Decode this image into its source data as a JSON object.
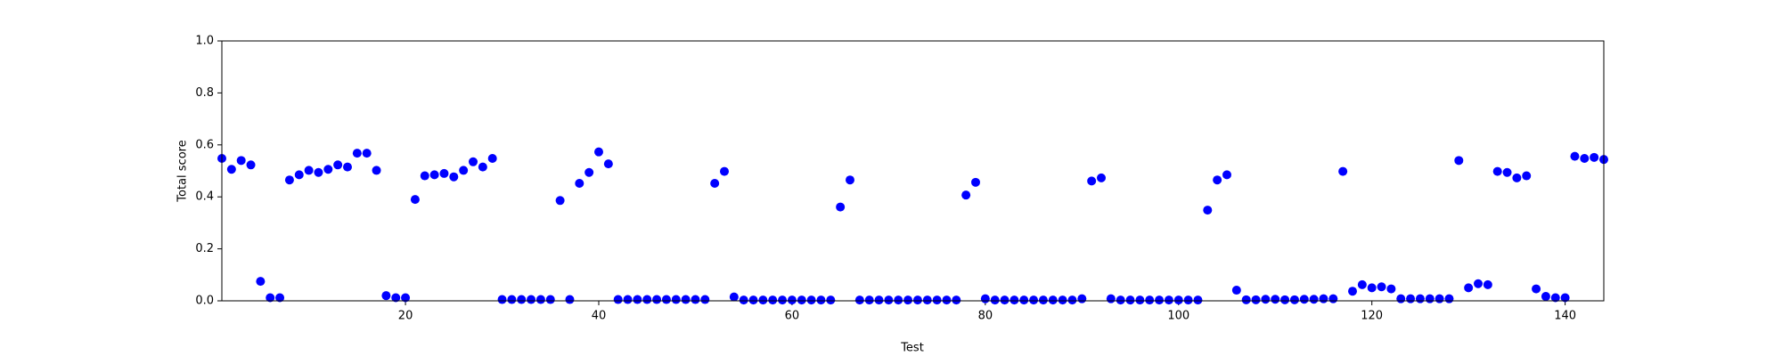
{
  "chart_data": {
    "type": "scatter",
    "x_label": "Test",
    "y_label": "Total score",
    "x": [
      1,
      2,
      3,
      4,
      5,
      6,
      7,
      8,
      9,
      10,
      11,
      12,
      13,
      14,
      15,
      16,
      17,
      18,
      19,
      20,
      21,
      22,
      23,
      24,
      25,
      26,
      27,
      28,
      29,
      30,
      31,
      32,
      33,
      34,
      35,
      36,
      37,
      38,
      39,
      40,
      41,
      42,
      43,
      44,
      45,
      46,
      47,
      48,
      49,
      50,
      51,
      52,
      53,
      54,
      55,
      56,
      57,
      58,
      59,
      60,
      61,
      62,
      63,
      64,
      65,
      66,
      67,
      68,
      69,
      70,
      71,
      72,
      73,
      74,
      75,
      76,
      77,
      78,
      79,
      80,
      81,
      82,
      83,
      84,
      85,
      86,
      87,
      88,
      89,
      90,
      91,
      92,
      93,
      94,
      95,
      96,
      97,
      98,
      99,
      100,
      101,
      102,
      103,
      104,
      105,
      106,
      107,
      108,
      109,
      110,
      111,
      112,
      113,
      114,
      115,
      116,
      117,
      118,
      119,
      120,
      121,
      122,
      123,
      124,
      125,
      126,
      127,
      128,
      129,
      130,
      131,
      132,
      133,
      134,
      135,
      136,
      137,
      138,
      139,
      140,
      141,
      142,
      143,
      144
    ],
    "values": [
      0.548,
      0.506,
      0.54,
      0.523,
      0.075,
      0.012,
      0.012,
      0.465,
      0.485,
      0.502,
      0.494,
      0.506,
      0.523,
      0.515,
      0.568,
      0.568,
      0.502,
      0.02,
      0.012,
      0.012,
      0.39,
      0.481,
      0.485,
      0.49,
      0.477,
      0.502,
      0.535,
      0.515,
      0.548,
      0.005,
      0.005,
      0.005,
      0.005,
      0.005,
      0.005,
      0.386,
      0.005,
      0.452,
      0.494,
      0.573,
      0.527,
      0.005,
      0.005,
      0.005,
      0.005,
      0.005,
      0.005,
      0.005,
      0.005,
      0.005,
      0.005,
      0.452,
      0.498,
      0.015,
      0.003,
      0.003,
      0.003,
      0.003,
      0.003,
      0.003,
      0.003,
      0.003,
      0.003,
      0.003,
      0.361,
      0.465,
      0.003,
      0.003,
      0.003,
      0.003,
      0.003,
      0.003,
      0.003,
      0.003,
      0.003,
      0.003,
      0.003,
      0.407,
      0.456,
      0.008,
      0.003,
      0.003,
      0.003,
      0.003,
      0.003,
      0.003,
      0.003,
      0.003,
      0.003,
      0.008,
      0.461,
      0.473,
      0.008,
      0.003,
      0.003,
      0.003,
      0.003,
      0.003,
      0.003,
      0.003,
      0.003,
      0.003,
      0.349,
      0.465,
      0.485,
      0.041,
      0.004,
      0.004,
      0.006,
      0.006,
      0.004,
      0.004,
      0.006,
      0.006,
      0.008,
      0.008,
      0.498,
      0.037,
      0.062,
      0.05,
      0.054,
      0.046,
      0.008,
      0.008,
      0.008,
      0.008,
      0.008,
      0.008,
      0.54,
      0.05,
      0.066,
      0.062,
      0.498,
      0.494,
      0.473,
      0.481,
      0.046,
      0.017,
      0.012,
      0.012,
      0.556,
      0.548,
      0.552,
      0.544
    ],
    "color": "#0000ff",
    "xlim": [
      1,
      144
    ],
    "xticks": [
      20,
      40,
      60,
      80,
      100,
      120,
      140
    ],
    "ylim": [
      0,
      1
    ],
    "yticks": [
      {
        "value": 0,
        "label": "0.0"
      },
      0.2,
      0.4,
      0.6,
      0.8,
      {
        "value": 1,
        "label": "1.0"
      }
    ]
  }
}
